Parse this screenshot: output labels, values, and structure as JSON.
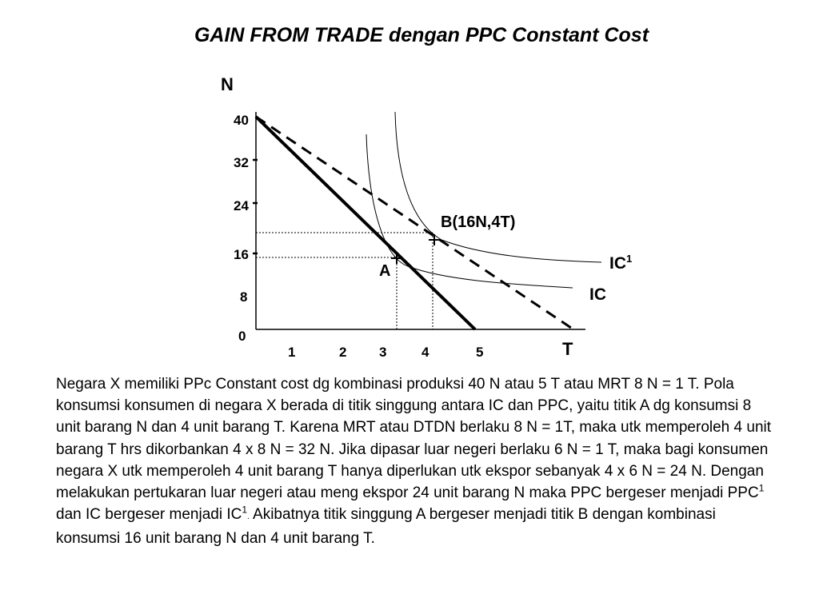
{
  "title": "GAIN FROM TRADE dengan PPC Constant Cost",
  "diagram": {
    "y_axis_label": "N",
    "x_axis_label": "T",
    "origin_label": "0",
    "y_ticks": [
      "40",
      "32",
      "24",
      "16",
      "8"
    ],
    "x_ticks": [
      "1",
      "2",
      "3",
      "4",
      "5"
    ],
    "point_a_label": "A",
    "point_b_label": "B(16N,4T)",
    "ic_label": "IC",
    "ic1_label_base": "IC",
    "ic1_label_sup": "1"
  },
  "text": {
    "p1": "Negara X memiliki PPc Constant cost dg kombinasi produksi 40 N atau 5 T atau MRT 8 N = 1 T. Pola konsumsi konsumen di negara X berada di titik singgung antara IC dan PPC, yaitu titik A dg konsumsi 8 unit barang N dan 4 unit barang T. Karena MRT atau DTDN berlaku 8 N = 1T, maka utk memperoleh 4 unit barang T hrs dikorbankan 4 x 8 N = 32 N. Jika dipasar luar negeri berlaku 6 N = 1 T, maka bagi konsumen negara X utk memperoleh 4 unit barang T hanya diperlukan utk ekspor sebanyak 4 x 6 N = 24 N. Dengan melakukan pertukaran luar negeri atau meng ekspor 24 unit barang N maka PPC bergeser menjadi PPC",
    "sup1": "1",
    "p2": " dan IC bergeser menjadi IC",
    "sup2": "1",
    "dot": ".",
    "p3": " Akibatnya titik singgung A bergeser menjadi titik B dengan kombinasi konsumsi 16 unit barang N dan 4 unit barang T."
  }
}
